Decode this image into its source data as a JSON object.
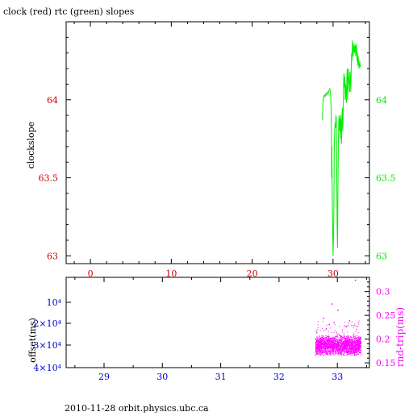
{
  "title": "clock (red) rtc (green) slopes",
  "footer": "2010-11-28  orbit.physics.ubc.ca",
  "colors": {
    "red": "#cc0000",
    "green": "#00ee00",
    "blue": "#0000cc",
    "magenta": "#ff00ff",
    "frame": "#000000",
    "background": "#ffffff"
  },
  "chart_data": [
    {
      "type": "line",
      "title": "clock (red) rtc (green) slopes",
      "ylabel": "clockslope",
      "xlabel": "",
      "xlim": [
        -3,
        34.5
      ],
      "ylim": [
        62.95,
        64.5
      ],
      "grid": false,
      "x_ticks": [
        0,
        10,
        20,
        30
      ],
      "y_ticks": [
        63,
        63.5,
        64
      ],
      "y_tick_labels_left": [
        "63",
        "63.5",
        "64"
      ],
      "y_tick_labels_right": [
        "63",
        "63.5",
        "64"
      ],
      "series": [
        {
          "color": "green",
          "x": [
            28.7,
            28.75,
            28.8,
            28.9,
            29.0,
            29.1,
            29.2,
            29.3,
            29.4,
            29.5,
            29.6,
            29.7,
            29.75,
            29.8,
            29.82,
            29.85,
            29.9,
            29.95,
            30.0,
            30.05,
            30.1,
            30.15,
            30.2,
            30.25,
            30.3,
            30.35,
            30.4,
            30.45,
            30.5,
            30.55,
            30.6,
            30.65,
            30.7,
            30.75,
            30.8,
            30.85,
            30.9,
            30.95,
            31.0,
            31.05,
            31.1,
            31.15,
            31.2,
            31.25,
            31.3,
            31.35,
            31.4,
            31.45,
            31.5,
            31.55,
            31.6,
            31.65,
            31.7,
            31.75,
            31.8,
            31.85,
            31.9,
            31.95,
            32.0,
            32.05,
            32.1,
            32.15,
            32.2,
            32.25,
            32.3,
            32.35,
            32.4,
            32.45,
            32.5,
            32.55,
            32.6,
            32.65,
            32.7,
            32.75,
            32.8,
            32.85,
            32.9,
            32.95,
            33.0,
            33.05,
            33.1,
            33.15,
            33.2,
            33.25,
            33.3,
            33.35,
            33.4
          ],
          "y": [
            63.87,
            63.98,
            64.01,
            64.03,
            64.02,
            64.04,
            64.03,
            64.05,
            64.04,
            64.06,
            64.07,
            64.03,
            63.95,
            63.8,
            63.5,
            63.7,
            63.4,
            63.2,
            63.0,
            63.1,
            63.3,
            63.7,
            63.8,
            63.85,
            63.82,
            63.9,
            63.88,
            63.6,
            63.2,
            63.05,
            63.4,
            63.7,
            63.85,
            63.9,
            63.8,
            63.88,
            63.75,
            63.9,
            63.85,
            63.72,
            63.9,
            63.95,
            63.8,
            63.9,
            64.1,
            64.17,
            64.08,
            64.15,
            64.0,
            64.1,
            64.05,
            63.98,
            64.12,
            64.2,
            64.0,
            64.08,
            64.2,
            64.15,
            64.1,
            64.05,
            64.18,
            64.15,
            64.05,
            64.2,
            64.3,
            64.25,
            64.38,
            64.35,
            64.28,
            64.32,
            64.36,
            64.3,
            64.33,
            64.35,
            64.28,
            64.32,
            64.36,
            64.25,
            64.3,
            64.22,
            64.28,
            64.24,
            64.2,
            64.22,
            64.25,
            64.21,
            64.22
          ]
        }
      ]
    },
    {
      "type": "scatter",
      "ylabel_left": "offset(ms)",
      "ylabel_right": "rnd-trip(ms)",
      "xlim": [
        28.35,
        33.55
      ],
      "x_ticks": [
        29,
        30,
        31,
        32,
        33
      ],
      "x_tick_labels": [
        "29",
        "30",
        "31",
        "32",
        "33"
      ],
      "y_left_tick_labels": [
        "10⁴",
        "2×10⁴",
        "3×10⁴",
        "4×10⁴"
      ],
      "y_right_ticks": [
        0.15,
        0.2,
        0.25,
        0.3
      ],
      "y_right_tick_labels": [
        "0.15",
        "0.2",
        "0.25",
        "0.3"
      ],
      "y_right_lim": [
        0.14,
        0.33
      ],
      "series": [
        {
          "color": "magenta",
          "x_range": [
            32.62,
            33.4
          ],
          "band_y": [
            0.165,
            0.21
          ],
          "outliers": [
            [
              33.3,
              0.325
            ],
            [
              32.9,
              0.275
            ],
            [
              33.0,
              0.262
            ],
            [
              32.75,
              0.245
            ],
            [
              33.2,
              0.24
            ],
            [
              32.85,
              0.232
            ],
            [
              33.15,
              0.228
            ]
          ]
        }
      ]
    }
  ]
}
